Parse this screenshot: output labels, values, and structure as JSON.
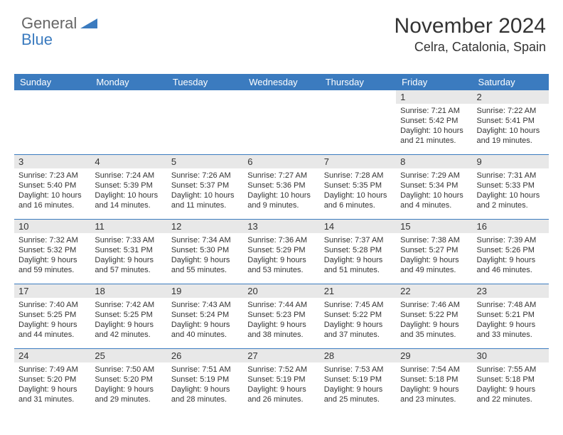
{
  "brand": {
    "text1": "General",
    "text2": "Blue",
    "color1": "#666666",
    "color2": "#3b7bbf"
  },
  "title": "November 2024",
  "location": "Celra, Catalonia, Spain",
  "header_bg": "#3b7bbf",
  "header_text_color": "#ffffff",
  "daynum_bg": "#e8e8e8",
  "divider_color": "#3b7bbf",
  "page_bg": "#ffffff",
  "text_color": "#333333",
  "body_fontsize": 11,
  "weekdays": [
    "Sunday",
    "Monday",
    "Tuesday",
    "Wednesday",
    "Thursday",
    "Friday",
    "Saturday"
  ],
  "weeks": [
    [
      {
        "n": "",
        "sunrise": "",
        "sunset": "",
        "daylight1": "",
        "daylight2": "",
        "empty": true
      },
      {
        "n": "",
        "sunrise": "",
        "sunset": "",
        "daylight1": "",
        "daylight2": "",
        "empty": true
      },
      {
        "n": "",
        "sunrise": "",
        "sunset": "",
        "daylight1": "",
        "daylight2": "",
        "empty": true
      },
      {
        "n": "",
        "sunrise": "",
        "sunset": "",
        "daylight1": "",
        "daylight2": "",
        "empty": true
      },
      {
        "n": "",
        "sunrise": "",
        "sunset": "",
        "daylight1": "",
        "daylight2": "",
        "empty": true
      },
      {
        "n": "1",
        "sunrise": "Sunrise: 7:21 AM",
        "sunset": "Sunset: 5:42 PM",
        "daylight1": "Daylight: 10 hours",
        "daylight2": "and 21 minutes."
      },
      {
        "n": "2",
        "sunrise": "Sunrise: 7:22 AM",
        "sunset": "Sunset: 5:41 PM",
        "daylight1": "Daylight: 10 hours",
        "daylight2": "and 19 minutes."
      }
    ],
    [
      {
        "n": "3",
        "sunrise": "Sunrise: 7:23 AM",
        "sunset": "Sunset: 5:40 PM",
        "daylight1": "Daylight: 10 hours",
        "daylight2": "and 16 minutes."
      },
      {
        "n": "4",
        "sunrise": "Sunrise: 7:24 AM",
        "sunset": "Sunset: 5:39 PM",
        "daylight1": "Daylight: 10 hours",
        "daylight2": "and 14 minutes."
      },
      {
        "n": "5",
        "sunrise": "Sunrise: 7:26 AM",
        "sunset": "Sunset: 5:37 PM",
        "daylight1": "Daylight: 10 hours",
        "daylight2": "and 11 minutes."
      },
      {
        "n": "6",
        "sunrise": "Sunrise: 7:27 AM",
        "sunset": "Sunset: 5:36 PM",
        "daylight1": "Daylight: 10 hours",
        "daylight2": "and 9 minutes."
      },
      {
        "n": "7",
        "sunrise": "Sunrise: 7:28 AM",
        "sunset": "Sunset: 5:35 PM",
        "daylight1": "Daylight: 10 hours",
        "daylight2": "and 6 minutes."
      },
      {
        "n": "8",
        "sunrise": "Sunrise: 7:29 AM",
        "sunset": "Sunset: 5:34 PM",
        "daylight1": "Daylight: 10 hours",
        "daylight2": "and 4 minutes."
      },
      {
        "n": "9",
        "sunrise": "Sunrise: 7:31 AM",
        "sunset": "Sunset: 5:33 PM",
        "daylight1": "Daylight: 10 hours",
        "daylight2": "and 2 minutes."
      }
    ],
    [
      {
        "n": "10",
        "sunrise": "Sunrise: 7:32 AM",
        "sunset": "Sunset: 5:32 PM",
        "daylight1": "Daylight: 9 hours",
        "daylight2": "and 59 minutes."
      },
      {
        "n": "11",
        "sunrise": "Sunrise: 7:33 AM",
        "sunset": "Sunset: 5:31 PM",
        "daylight1": "Daylight: 9 hours",
        "daylight2": "and 57 minutes."
      },
      {
        "n": "12",
        "sunrise": "Sunrise: 7:34 AM",
        "sunset": "Sunset: 5:30 PM",
        "daylight1": "Daylight: 9 hours",
        "daylight2": "and 55 minutes."
      },
      {
        "n": "13",
        "sunrise": "Sunrise: 7:36 AM",
        "sunset": "Sunset: 5:29 PM",
        "daylight1": "Daylight: 9 hours",
        "daylight2": "and 53 minutes."
      },
      {
        "n": "14",
        "sunrise": "Sunrise: 7:37 AM",
        "sunset": "Sunset: 5:28 PM",
        "daylight1": "Daylight: 9 hours",
        "daylight2": "and 51 minutes."
      },
      {
        "n": "15",
        "sunrise": "Sunrise: 7:38 AM",
        "sunset": "Sunset: 5:27 PM",
        "daylight1": "Daylight: 9 hours",
        "daylight2": "and 49 minutes."
      },
      {
        "n": "16",
        "sunrise": "Sunrise: 7:39 AM",
        "sunset": "Sunset: 5:26 PM",
        "daylight1": "Daylight: 9 hours",
        "daylight2": "and 46 minutes."
      }
    ],
    [
      {
        "n": "17",
        "sunrise": "Sunrise: 7:40 AM",
        "sunset": "Sunset: 5:25 PM",
        "daylight1": "Daylight: 9 hours",
        "daylight2": "and 44 minutes."
      },
      {
        "n": "18",
        "sunrise": "Sunrise: 7:42 AM",
        "sunset": "Sunset: 5:25 PM",
        "daylight1": "Daylight: 9 hours",
        "daylight2": "and 42 minutes."
      },
      {
        "n": "19",
        "sunrise": "Sunrise: 7:43 AM",
        "sunset": "Sunset: 5:24 PM",
        "daylight1": "Daylight: 9 hours",
        "daylight2": "and 40 minutes."
      },
      {
        "n": "20",
        "sunrise": "Sunrise: 7:44 AM",
        "sunset": "Sunset: 5:23 PM",
        "daylight1": "Daylight: 9 hours",
        "daylight2": "and 38 minutes."
      },
      {
        "n": "21",
        "sunrise": "Sunrise: 7:45 AM",
        "sunset": "Sunset: 5:22 PM",
        "daylight1": "Daylight: 9 hours",
        "daylight2": "and 37 minutes."
      },
      {
        "n": "22",
        "sunrise": "Sunrise: 7:46 AM",
        "sunset": "Sunset: 5:22 PM",
        "daylight1": "Daylight: 9 hours",
        "daylight2": "and 35 minutes."
      },
      {
        "n": "23",
        "sunrise": "Sunrise: 7:48 AM",
        "sunset": "Sunset: 5:21 PM",
        "daylight1": "Daylight: 9 hours",
        "daylight2": "and 33 minutes."
      }
    ],
    [
      {
        "n": "24",
        "sunrise": "Sunrise: 7:49 AM",
        "sunset": "Sunset: 5:20 PM",
        "daylight1": "Daylight: 9 hours",
        "daylight2": "and 31 minutes."
      },
      {
        "n": "25",
        "sunrise": "Sunrise: 7:50 AM",
        "sunset": "Sunset: 5:20 PM",
        "daylight1": "Daylight: 9 hours",
        "daylight2": "and 29 minutes."
      },
      {
        "n": "26",
        "sunrise": "Sunrise: 7:51 AM",
        "sunset": "Sunset: 5:19 PM",
        "daylight1": "Daylight: 9 hours",
        "daylight2": "and 28 minutes."
      },
      {
        "n": "27",
        "sunrise": "Sunrise: 7:52 AM",
        "sunset": "Sunset: 5:19 PM",
        "daylight1": "Daylight: 9 hours",
        "daylight2": "and 26 minutes."
      },
      {
        "n": "28",
        "sunrise": "Sunrise: 7:53 AM",
        "sunset": "Sunset: 5:19 PM",
        "daylight1": "Daylight: 9 hours",
        "daylight2": "and 25 minutes."
      },
      {
        "n": "29",
        "sunrise": "Sunrise: 7:54 AM",
        "sunset": "Sunset: 5:18 PM",
        "daylight1": "Daylight: 9 hours",
        "daylight2": "and 23 minutes."
      },
      {
        "n": "30",
        "sunrise": "Sunrise: 7:55 AM",
        "sunset": "Sunset: 5:18 PM",
        "daylight1": "Daylight: 9 hours",
        "daylight2": "and 22 minutes."
      }
    ]
  ]
}
